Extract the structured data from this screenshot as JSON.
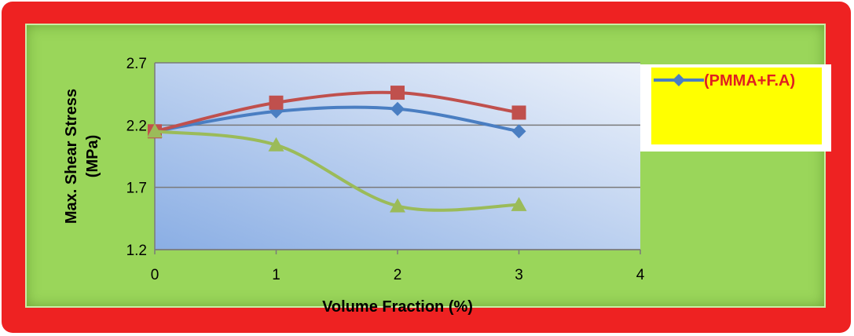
{
  "colors": {
    "frame": "#ee2222",
    "panel": "#9ad65a",
    "plot_top_right": "#eef3fb",
    "plot_bottom_left": "#8aaee4",
    "legend_box": "#ffff00",
    "legend_text": "#e02020"
  },
  "chart_data": {
    "type": "line",
    "title": "",
    "xlabel": "Volume Fraction (%)",
    "ylabel": "Max. Shear Stress (MPa)",
    "ylabel_lines": [
      "Max. Shear Stress",
      "(MPa)"
    ],
    "xlim": [
      0,
      4
    ],
    "ylim": [
      1.2,
      2.7
    ],
    "x_ticks": [
      "0",
      "1",
      "2",
      "3",
      "4"
    ],
    "y_ticks": [
      "1.2",
      "1.7",
      "2.2",
      "2.7"
    ],
    "grid": "horizontal",
    "smooth": true,
    "legend_position": "right",
    "x": [
      0,
      1,
      2,
      3
    ],
    "series": [
      {
        "name": "(PMMA+F.A)",
        "color": "#4a7ec2",
        "marker": "diamond",
        "values": [
          2.15,
          2.31,
          2.33,
          2.15
        ]
      },
      {
        "color": "#c0504d",
        "marker": "square",
        "values": [
          2.15,
          2.38,
          2.46,
          2.3
        ]
      },
      {
        "color": "#9bbb59",
        "marker": "triangle",
        "values": [
          2.15,
          2.04,
          1.55,
          1.56
        ]
      }
    ]
  }
}
